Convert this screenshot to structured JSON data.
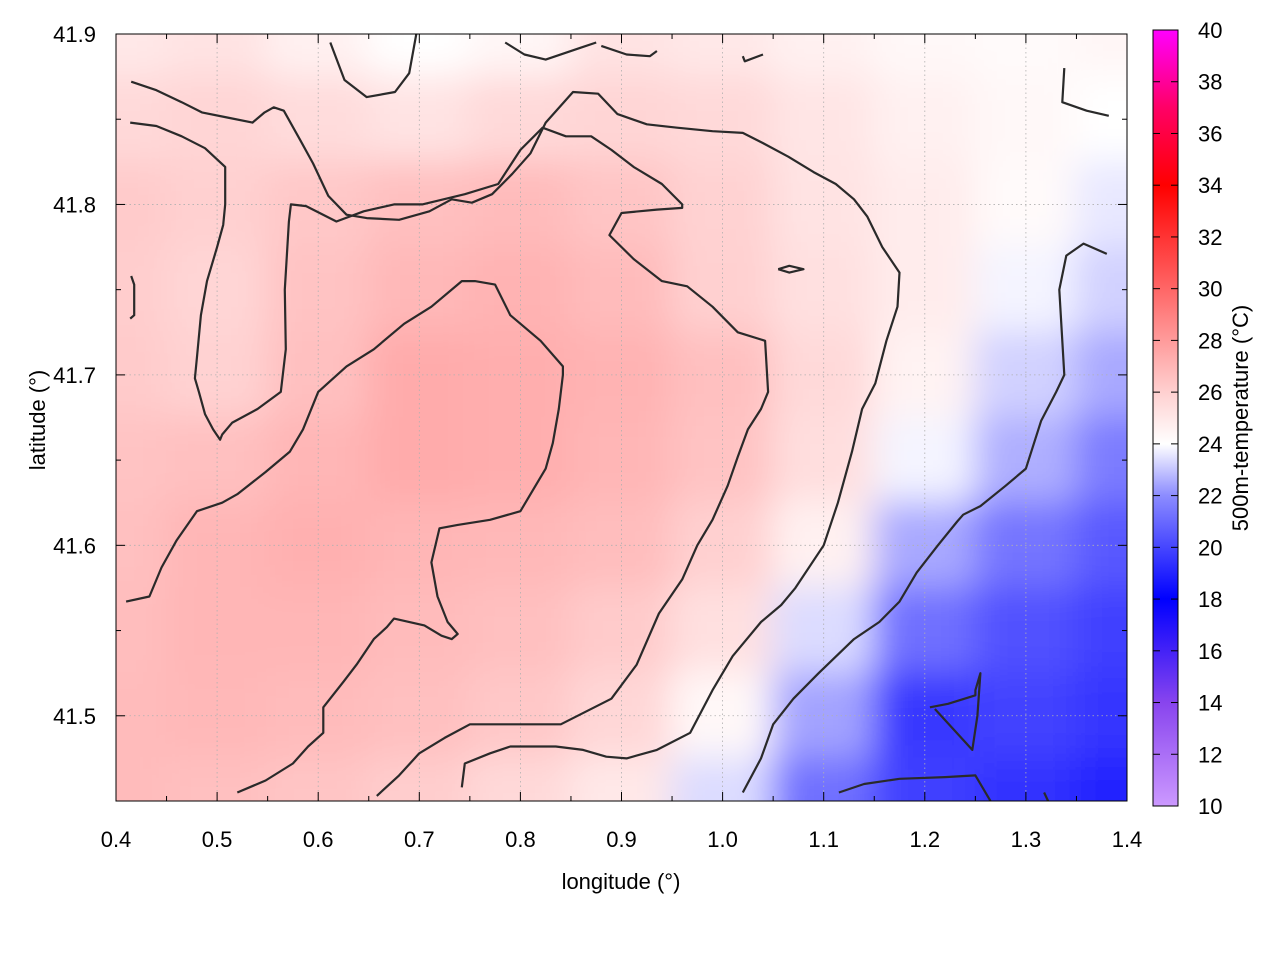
{
  "chart_data": {
    "type": "heatmap",
    "title": "",
    "xlabel": "longitude (°)",
    "ylabel": "latitude (°)",
    "colorbar_label": "500m-temperature (°C)",
    "xlim": [
      0.4,
      1.4
    ],
    "ylim": [
      41.45,
      41.9
    ],
    "xticks": [
      "0.4",
      "0.5",
      "0.6",
      "0.7",
      "0.8",
      "0.9",
      "1.0",
      "1.1",
      "1.2",
      "1.3",
      "1.4"
    ],
    "yticks": [
      "41.5",
      "41.6",
      "41.7",
      "41.8",
      "41.9"
    ],
    "colorbar_range": [
      10,
      40
    ],
    "colorbar_ticks": [
      "10",
      "12",
      "14",
      "16",
      "18",
      "20",
      "22",
      "24",
      "26",
      "28",
      "30",
      "32",
      "34",
      "36",
      "38",
      "40"
    ],
    "colormap": [
      {
        "value": 10,
        "color": "#cc99ff"
      },
      {
        "value": 14,
        "color": "#8844ee"
      },
      {
        "value": 18,
        "color": "#0000ff"
      },
      {
        "value": 22,
        "color": "#8c8cff"
      },
      {
        "value": 24,
        "color": "#ffffff"
      },
      {
        "value": 26,
        "color": "#ffd0d0"
      },
      {
        "value": 30,
        "color": "#ff6666"
      },
      {
        "value": 34,
        "color": "#ff0000"
      },
      {
        "value": 37,
        "color": "#ff0066"
      },
      {
        "value": 40,
        "color": "#ff00ff"
      }
    ],
    "field": {
      "x": [
        0.4,
        0.5,
        0.6,
        0.7,
        0.8,
        0.9,
        1.0,
        1.1,
        1.2,
        1.3,
        1.4
      ],
      "y": [
        41.9,
        41.85,
        41.8,
        41.75,
        41.7,
        41.65,
        41.6,
        41.55,
        41.5,
        41.45
      ],
      "values": [
        [
          25.0,
          25.2,
          24.6,
          24.0,
          24.4,
          25.2,
          25.0,
          24.6,
          24.3,
          24.2,
          24.4
        ],
        [
          25.6,
          25.8,
          25.5,
          25.2,
          25.6,
          25.8,
          25.6,
          25.1,
          24.6,
          24.3,
          24.0
        ],
        [
          26.2,
          26.0,
          26.3,
          26.6,
          26.8,
          26.4,
          25.9,
          25.2,
          24.8,
          24.2,
          23.6
        ],
        [
          26.1,
          25.8,
          26.5,
          26.9,
          27.1,
          26.8,
          26.0,
          25.3,
          24.8,
          23.8,
          23.2
        ],
        [
          26.2,
          25.9,
          26.6,
          27.4,
          27.3,
          27.1,
          26.6,
          25.6,
          24.5,
          23.2,
          22.5
        ],
        [
          26.5,
          26.6,
          27.0,
          27.4,
          27.3,
          27.0,
          26.5,
          25.4,
          23.8,
          22.6,
          21.5
        ],
        [
          26.6,
          27.0,
          27.2,
          27.0,
          26.9,
          26.7,
          26.0,
          24.6,
          22.5,
          21.3,
          20.5
        ],
        [
          26.7,
          27.0,
          27.0,
          26.8,
          26.6,
          26.2,
          25.3,
          23.4,
          21.2,
          20.3,
          19.8
        ],
        [
          26.8,
          26.9,
          26.8,
          26.6,
          26.3,
          25.7,
          24.3,
          22.4,
          19.6,
          19.9,
          19.5
        ],
        [
          26.8,
          26.6,
          26.4,
          26.1,
          25.6,
          25.0,
          23.4,
          21.2,
          19.8,
          19.4,
          19.0
        ]
      ]
    },
    "contours": [
      {
        "points": [
          [
            0.415,
            41.872
          ],
          [
            0.44,
            41.867
          ],
          [
            0.465,
            41.86
          ],
          [
            0.485,
            41.854
          ],
          [
            0.51,
            41.851
          ],
          [
            0.535,
            41.848
          ],
          [
            0.547,
            41.854
          ],
          [
            0.556,
            41.857
          ],
          [
            0.566,
            41.855
          ],
          [
            0.582,
            41.838
          ],
          [
            0.595,
            41.824
          ],
          [
            0.61,
            41.805
          ],
          [
            0.628,
            41.794
          ],
          [
            0.648,
            41.792
          ],
          [
            0.68,
            41.791
          ],
          [
            0.71,
            41.796
          ],
          [
            0.732,
            41.803
          ],
          [
            0.752,
            41.801
          ],
          [
            0.772,
            41.806
          ],
          [
            0.792,
            41.818
          ],
          [
            0.81,
            41.83
          ],
          [
            0.825,
            41.848
          ],
          [
            0.852,
            41.866
          ],
          [
            0.877,
            41.865
          ],
          [
            0.896,
            41.853
          ],
          [
            0.925,
            41.847
          ],
          [
            0.955,
            41.845
          ],
          [
            0.99,
            41.843
          ],
          [
            1.02,
            41.842
          ],
          [
            1.04,
            41.836
          ],
          [
            1.065,
            41.828
          ],
          [
            1.09,
            41.819
          ],
          [
            1.112,
            41.812
          ],
          [
            1.13,
            41.803
          ],
          [
            1.143,
            41.793
          ],
          [
            1.158,
            41.775
          ],
          [
            1.175,
            41.76
          ],
          [
            1.173,
            41.74
          ],
          [
            1.162,
            41.72
          ],
          [
            1.151,
            41.695
          ],
          [
            1.138,
            41.68
          ],
          [
            1.128,
            41.655
          ],
          [
            1.114,
            41.625
          ],
          [
            1.1,
            41.6
          ],
          [
            1.072,
            41.575
          ],
          [
            1.058,
            41.565
          ],
          [
            1.038,
            41.555
          ],
          [
            1.01,
            41.535
          ],
          [
            0.99,
            41.515
          ],
          [
            0.968,
            41.49
          ],
          [
            0.935,
            41.48
          ],
          [
            0.905,
            41.475
          ],
          [
            0.885,
            41.476
          ],
          [
            0.862,
            41.48
          ],
          [
            0.835,
            41.482
          ],
          [
            0.79,
            41.482
          ],
          [
            0.77,
            41.478
          ],
          [
            0.745,
            41.472
          ],
          [
            0.742,
            41.458
          ]
        ]
      },
      {
        "points": [
          [
            0.414,
            41.848
          ],
          [
            0.44,
            41.846
          ],
          [
            0.465,
            41.84
          ],
          [
            0.488,
            41.833
          ],
          [
            0.508,
            41.822
          ],
          [
            0.508,
            41.8
          ],
          [
            0.506,
            41.788
          ],
          [
            0.5,
            41.775
          ],
          [
            0.49,
            41.755
          ],
          [
            0.484,
            41.735
          ],
          [
            0.48,
            41.71
          ],
          [
            0.478,
            41.698
          ],
          [
            0.482,
            41.69
          ],
          [
            0.488,
            41.677
          ],
          [
            0.496,
            41.668
          ],
          [
            0.503,
            41.662
          ],
          [
            0.505,
            41.665
          ],
          [
            0.515,
            41.672
          ],
          [
            0.54,
            41.68
          ],
          [
            0.563,
            41.69
          ],
          [
            0.568,
            41.715
          ],
          [
            0.567,
            41.75
          ],
          [
            0.571,
            41.79
          ],
          [
            0.573,
            41.8
          ],
          [
            0.588,
            41.799
          ],
          [
            0.618,
            41.79
          ],
          [
            0.645,
            41.796
          ],
          [
            0.675,
            41.8
          ],
          [
            0.703,
            41.8
          ],
          [
            0.745,
            41.806
          ],
          [
            0.778,
            41.812
          ],
          [
            0.8,
            41.832
          ],
          [
            0.822,
            41.845
          ],
          [
            0.845,
            41.84
          ],
          [
            0.87,
            41.84
          ],
          [
            0.89,
            41.832
          ],
          [
            0.912,
            41.822
          ],
          [
            0.94,
            41.812
          ],
          [
            0.96,
            41.8
          ],
          [
            0.96,
            41.798
          ],
          [
            0.935,
            41.797
          ],
          [
            0.9,
            41.795
          ],
          [
            0.888,
            41.782
          ],
          [
            0.912,
            41.768
          ],
          [
            0.94,
            41.755
          ],
          [
            0.965,
            41.752
          ],
          [
            0.99,
            41.74
          ],
          [
            1.015,
            41.725
          ],
          [
            1.042,
            41.72
          ],
          [
            1.045,
            41.69
          ],
          [
            1.038,
            41.68
          ],
          [
            1.025,
            41.668
          ],
          [
            1.015,
            41.652
          ],
          [
            1.005,
            41.635
          ],
          [
            0.99,
            41.615
          ],
          [
            0.975,
            41.6
          ],
          [
            0.96,
            41.58
          ],
          [
            0.937,
            41.56
          ],
          [
            0.915,
            41.53
          ],
          [
            0.89,
            41.51
          ],
          [
            0.84,
            41.495
          ],
          [
            0.75,
            41.495
          ],
          [
            0.725,
            41.487
          ],
          [
            0.7,
            41.478
          ],
          [
            0.68,
            41.465
          ],
          [
            0.658,
            41.453
          ]
        ]
      },
      {
        "points": [
          [
            0.41,
            41.567
          ],
          [
            0.433,
            41.57
          ],
          [
            0.445,
            41.587
          ],
          [
            0.46,
            41.603
          ],
          [
            0.48,
            41.62
          ],
          [
            0.505,
            41.625
          ],
          [
            0.52,
            41.63
          ],
          [
            0.548,
            41.643
          ],
          [
            0.572,
            41.655
          ],
          [
            0.585,
            41.668
          ],
          [
            0.6,
            41.69
          ],
          [
            0.628,
            41.705
          ],
          [
            0.655,
            41.715
          ],
          [
            0.685,
            41.73
          ],
          [
            0.712,
            41.74
          ],
          [
            0.742,
            41.755
          ],
          [
            0.755,
            41.755
          ],
          [
            0.775,
            41.753
          ],
          [
            0.79,
            41.735
          ],
          [
            0.82,
            41.72
          ],
          [
            0.842,
            41.705
          ],
          [
            0.842,
            41.7
          ],
          [
            0.838,
            41.68
          ],
          [
            0.832,
            41.66
          ],
          [
            0.825,
            41.645
          ],
          [
            0.8,
            41.62
          ],
          [
            0.77,
            41.615
          ],
          [
            0.738,
            41.612
          ],
          [
            0.72,
            41.61
          ],
          [
            0.712,
            41.59
          ],
          [
            0.718,
            41.57
          ],
          [
            0.728,
            41.555
          ],
          [
            0.738,
            41.548
          ],
          [
            0.732,
            41.545
          ],
          [
            0.722,
            41.547
          ],
          [
            0.705,
            41.553
          ],
          [
            0.675,
            41.557
          ],
          [
            0.668,
            41.552
          ],
          [
            0.655,
            41.545
          ],
          [
            0.638,
            41.53
          ],
          [
            0.625,
            41.52
          ],
          [
            0.605,
            41.505
          ],
          [
            0.605,
            41.49
          ],
          [
            0.59,
            41.482
          ],
          [
            0.575,
            41.472
          ],
          [
            0.548,
            41.462
          ],
          [
            0.52,
            41.455
          ]
        ]
      },
      {
        "points": [
          [
            0.612,
            41.895
          ],
          [
            0.626,
            41.873
          ],
          [
            0.648,
            41.863
          ],
          [
            0.676,
            41.866
          ],
          [
            0.69,
            41.877
          ],
          [
            0.697,
            41.9
          ]
        ]
      },
      {
        "points": [
          [
            0.785,
            41.895
          ],
          [
            0.804,
            41.888
          ],
          [
            0.825,
            41.885
          ],
          [
            0.86,
            41.892
          ],
          [
            0.875,
            41.895
          ]
        ]
      },
      {
        "points": [
          [
            0.88,
            41.893
          ],
          [
            0.905,
            41.888
          ],
          [
            0.928,
            41.887
          ],
          [
            0.935,
            41.89
          ]
        ]
      },
      {
        "points": [
          [
            1.02,
            41.887
          ],
          [
            1.022,
            41.884
          ],
          [
            1.04,
            41.888
          ]
        ]
      },
      {
        "points": [
          [
            1.338,
            41.88
          ],
          [
            1.336,
            41.86
          ],
          [
            1.36,
            41.855
          ],
          [
            1.382,
            41.852
          ]
        ]
      },
      {
        "points": [
          [
            1.055,
            41.762
          ],
          [
            1.066,
            41.764
          ],
          [
            1.08,
            41.762
          ],
          [
            1.066,
            41.76
          ],
          [
            1.055,
            41.762
          ]
        ]
      },
      {
        "points": [
          [
            0.415,
            41.758
          ],
          [
            0.418,
            41.753
          ],
          [
            0.418,
            41.735
          ],
          [
            0.414,
            41.733
          ]
        ]
      },
      {
        "points": [
          [
            1.02,
            41.455
          ],
          [
            1.038,
            41.475
          ],
          [
            1.05,
            41.495
          ],
          [
            1.07,
            41.51
          ],
          [
            1.095,
            41.525
          ],
          [
            1.13,
            41.545
          ],
          [
            1.155,
            41.555
          ],
          [
            1.175,
            41.567
          ],
          [
            1.192,
            41.584
          ],
          [
            1.213,
            41.6
          ],
          [
            1.232,
            41.614
          ],
          [
            1.238,
            41.618
          ],
          [
            1.255,
            41.623
          ],
          [
            1.28,
            41.635
          ],
          [
            1.3,
            41.645
          ],
          [
            1.315,
            41.673
          ],
          [
            1.33,
            41.69
          ],
          [
            1.338,
            41.7
          ],
          [
            1.335,
            41.73
          ],
          [
            1.333,
            41.75
          ],
          [
            1.34,
            41.77
          ],
          [
            1.357,
            41.777
          ],
          [
            1.38,
            41.771
          ]
        ]
      },
      {
        "points": [
          [
            1.205,
            41.505
          ],
          [
            1.223,
            41.507
          ],
          [
            1.25,
            41.512
          ],
          [
            1.25,
            41.515
          ],
          [
            1.255,
            41.525
          ],
          [
            1.252,
            41.5
          ],
          [
            1.247,
            41.48
          ],
          [
            1.21,
            41.504
          ]
        ]
      },
      {
        "points": [
          [
            1.115,
            41.455
          ],
          [
            1.14,
            41.46
          ],
          [
            1.175,
            41.463
          ],
          [
            1.22,
            41.464
          ],
          [
            1.25,
            41.465
          ],
          [
            1.265,
            41.45
          ]
        ]
      },
      {
        "points": [
          [
            1.318,
            41.455
          ],
          [
            1.322,
            41.45
          ]
        ]
      }
    ]
  }
}
